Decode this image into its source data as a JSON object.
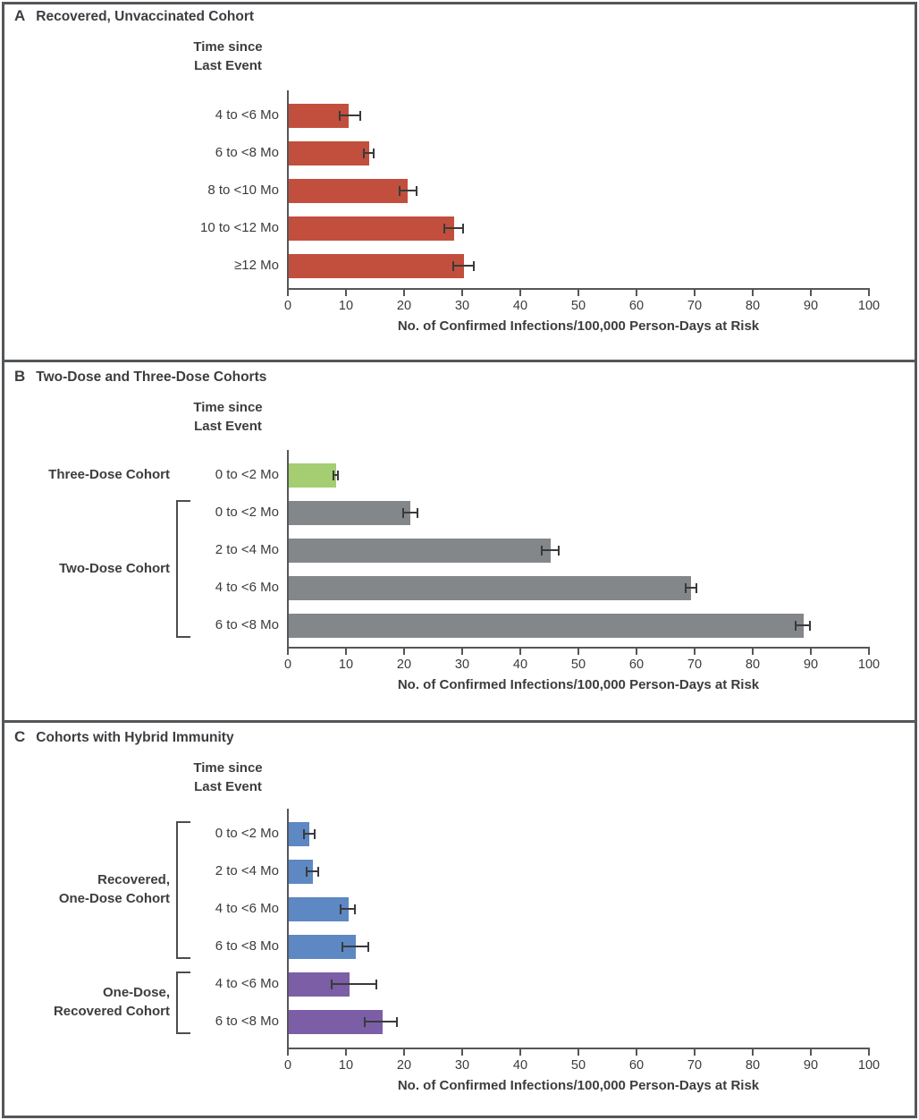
{
  "figure": {
    "header_lines": [
      "Time since",
      "Last Event"
    ],
    "axis_title": "No. of Confirmed Infections/100,000 Person-Days at Risk",
    "colors": {
      "red": "#c24f3d",
      "green": "#a5cd71",
      "gray": "#84878a",
      "blue": "#5d88c3",
      "purple": "#7b5ea6",
      "axis": "#55565a",
      "text": "#3c3d3f",
      "error_bar": "#3a3a3c"
    }
  },
  "chart_data": [
    {
      "type": "bar",
      "orientation": "horizontal",
      "panel_letter": "A",
      "title": "Recovered, Unvaccinated Cohort",
      "header_lines": [
        "Time since",
        "Last Event"
      ],
      "xlabel": "No. of Confirmed Infections/100,000 Person-Days at Risk",
      "xlim": [
        0,
        100
      ],
      "xticks": [
        0,
        10,
        20,
        30,
        40,
        50,
        60,
        70,
        80,
        90,
        100
      ],
      "grid": false,
      "groups": [
        {
          "label_lines": [],
          "bracket": false,
          "color": "#c24f3d",
          "rows": [
            {
              "category": "4 to <6 Mo",
              "value": 10.3,
              "ci": [
                8.9,
                12.4
              ]
            },
            {
              "category": "6 to <8 Mo",
              "value": 13.9,
              "ci": [
                13.1,
                14.8
              ]
            },
            {
              "category": "8 to <10 Mo",
              "value": 20.5,
              "ci": [
                19.2,
                22.2
              ]
            },
            {
              "category": "10 to <12 Mo",
              "value": 28.4,
              "ci": [
                26.9,
                30.1
              ]
            },
            {
              "category": "≥12 Mo",
              "value": 30.2,
              "ci": [
                28.5,
                32.0
              ]
            }
          ]
        }
      ]
    },
    {
      "type": "bar",
      "orientation": "horizontal",
      "panel_letter": "B",
      "title": "Two-Dose and Three-Dose Cohorts",
      "header_lines": [
        "Time since",
        "Last Event"
      ],
      "xlabel": "No. of Confirmed Infections/100,000 Person-Days at Risk",
      "xlim": [
        0,
        100
      ],
      "xticks": [
        0,
        10,
        20,
        30,
        40,
        50,
        60,
        70,
        80,
        90,
        100
      ],
      "grid": false,
      "groups": [
        {
          "label_lines": [
            "Three-Dose Cohort"
          ],
          "bracket": false,
          "color": "#a5cd71",
          "rows": [
            {
              "category": "0 to <2 Mo",
              "value": 8.2,
              "ci": [
                7.9,
                8.6
              ]
            }
          ]
        },
        {
          "label_lines": [
            "Two-Dose Cohort"
          ],
          "bracket": true,
          "color": "#84878a",
          "rows": [
            {
              "category": "0 to <2 Mo",
              "value": 20.9,
              "ci": [
                19.9,
                22.3
              ]
            },
            {
              "category": "2 to <4 Mo",
              "value": 45.0,
              "ci": [
                43.7,
                46.6
              ]
            },
            {
              "category": "4 to <6 Mo",
              "value": 69.3,
              "ci": [
                68.4,
                70.3
              ]
            },
            {
              "category": "6 to <8 Mo",
              "value": 88.6,
              "ci": [
                87.4,
                89.8
              ]
            }
          ]
        }
      ]
    },
    {
      "type": "bar",
      "orientation": "horizontal",
      "panel_letter": "C",
      "title": "Cohorts with Hybrid Immunity",
      "header_lines": [
        "Time since",
        "Last Event"
      ],
      "xlabel": "No. of Confirmed Infections/100,000 Person-Days at Risk",
      "xlim": [
        0,
        100
      ],
      "xticks": [
        0,
        10,
        20,
        30,
        40,
        50,
        60,
        70,
        80,
        90,
        100
      ],
      "grid": false,
      "groups": [
        {
          "label_lines": [
            "Recovered,",
            "One-Dose Cohort"
          ],
          "bracket": true,
          "color": "#5d88c3",
          "rows": [
            {
              "category": "0 to <2 Mo",
              "value": 3.5,
              "ci": [
                2.8,
                4.6
              ]
            },
            {
              "category": "2 to <4 Mo",
              "value": 4.2,
              "ci": [
                3.2,
                5.3
              ]
            },
            {
              "category": "4 to <6 Mo",
              "value": 10.3,
              "ci": [
                9.1,
                11.6
              ]
            },
            {
              "category": "6 to <8 Mo",
              "value": 11.5,
              "ci": [
                9.4,
                13.8
              ]
            }
          ]
        },
        {
          "label_lines": [
            "One-Dose,",
            "Recovered Cohort"
          ],
          "bracket": true,
          "color": "#7b5ea6",
          "rows": [
            {
              "category": "4 to <6 Mo",
              "value": 10.5,
              "ci": [
                7.5,
                15.2
              ]
            },
            {
              "category": "6 to <8 Mo",
              "value": 16.1,
              "ci": [
                13.3,
                18.8
              ]
            }
          ]
        }
      ]
    }
  ]
}
